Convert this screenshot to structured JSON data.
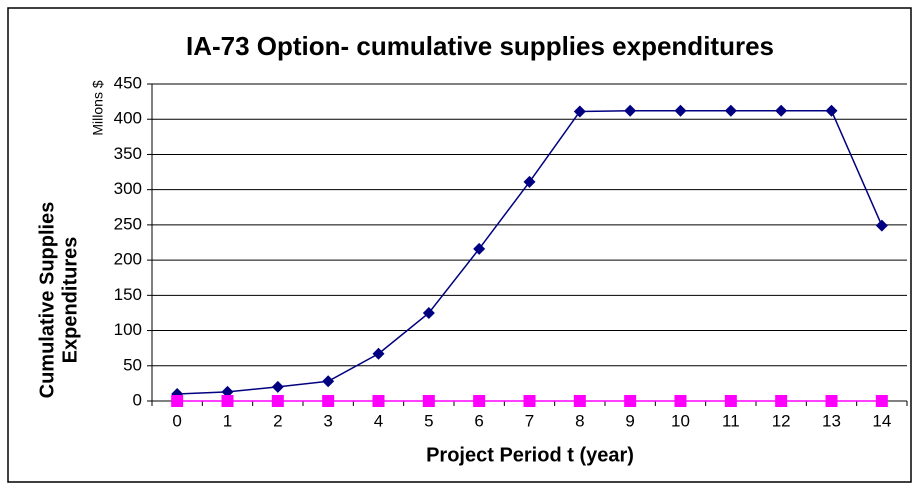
{
  "chart_data": {
    "type": "line",
    "title": "IA-73 Option- cumulative supplies expenditures",
    "x_label": "Project Period t (year)",
    "y_label": [
      "Cumulative Supplies",
      "Expenditures"
    ],
    "y_unit": "Millons $",
    "categories": [
      "0",
      "1",
      "2",
      "3",
      "4",
      "5",
      "6",
      "7",
      "8",
      "9",
      "10",
      "11",
      "12",
      "13",
      "14"
    ],
    "series": [
      {
        "color": "#000080",
        "marker": "diamond",
        "values": [
          10,
          13,
          20,
          28,
          67,
          125,
          216,
          311,
          411,
          412,
          412,
          412,
          412,
          412,
          249
        ]
      },
      {
        "color": "#ff00ff",
        "marker": "square",
        "values": [
          0,
          0,
          0,
          0,
          0,
          0,
          0,
          0,
          0,
          0,
          0,
          0,
          0,
          0,
          0
        ]
      }
    ],
    "ylim": [
      0,
      450
    ],
    "yticks": [
      0,
      50,
      100,
      150,
      200,
      250,
      300,
      350,
      400,
      450
    ],
    "grid": true
  }
}
